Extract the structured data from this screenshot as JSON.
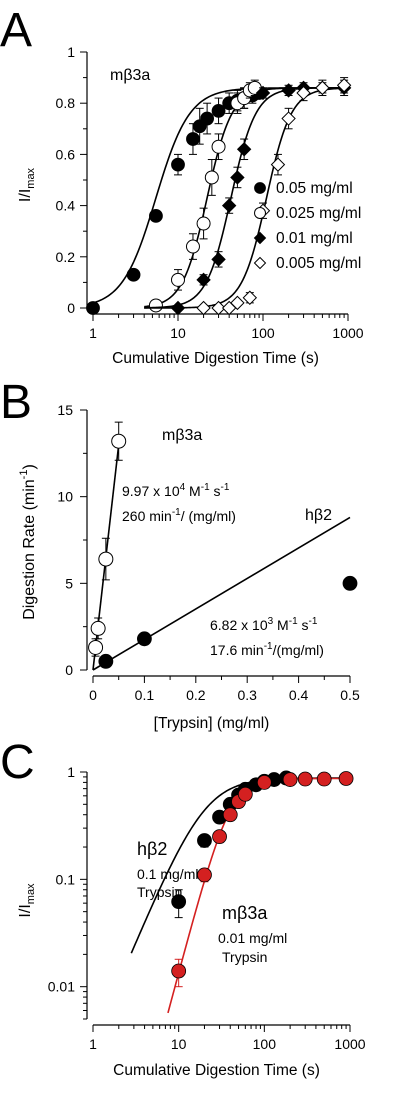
{
  "chart_data": [
    {
      "panel_label": "A",
      "type": "scatter",
      "annotation": "mβ3a",
      "xlabel": "Cumulative Digestion Time (s)",
      "ylabel": "I/I",
      "ylabel_sub": "max",
      "xscale": "log",
      "xlim": [
        1,
        1000
      ],
      "ylim": [
        0,
        1
      ],
      "xticks": [
        "1",
        "10",
        "100",
        "1000"
      ],
      "yticks": [
        "0",
        "0.2",
        "0.4",
        "0.6",
        "0.8",
        "1"
      ],
      "legend_position": "right",
      "series": [
        {
          "name": "0.05 mg/ml",
          "marker": "filled-circle",
          "x": [
            1,
            3,
            5.5,
            10,
            15,
            18,
            22,
            30,
            40,
            50,
            60,
            75,
            90
          ],
          "y": [
            0,
            0.13,
            0.36,
            0.56,
            0.66,
            0.71,
            0.74,
            0.77,
            0.8,
            0.81,
            0.82,
            0.83,
            0.84
          ],
          "err": [
            0,
            0,
            0,
            0.04,
            0.06,
            0.07,
            0.06,
            0.05,
            0.04,
            0.04,
            0.04,
            0.03,
            0.02
          ],
          "fit_midpoint": 5.5,
          "fit_hill": 2.2,
          "fit_max": 0.86
        },
        {
          "name": "0.025 mg/ml",
          "marker": "open-circle",
          "x": [
            5.5,
            10,
            15,
            20,
            25,
            30,
            50,
            60,
            70,
            80
          ],
          "y": [
            0.01,
            0.11,
            0.24,
            0.33,
            0.51,
            0.63,
            0.8,
            0.82,
            0.85,
            0.86
          ],
          "err": [
            0.02,
            0.04,
            0.05,
            0.06,
            0.07,
            0.05,
            0.04,
            0.04,
            0.03,
            0.03
          ],
          "fit_midpoint": 22,
          "fit_hill": 3,
          "fit_max": 0.86
        },
        {
          "name": "0.01 mg/ml",
          "marker": "filled-diamond",
          "x": [
            10,
            20,
            30,
            40,
            50,
            60,
            100,
            200,
            300,
            500,
            900
          ],
          "y": [
            0,
            0.11,
            0.19,
            0.4,
            0.51,
            0.62,
            0.84,
            0.85,
            0.86,
            0.86,
            0.86
          ],
          "err": [
            0,
            0.02,
            0.03,
            0.03,
            0.04,
            0.04,
            0.02,
            0.02,
            0.02,
            0.02,
            0.03
          ],
          "fit_midpoint": 42,
          "fit_hill": 3,
          "fit_max": 0.86
        },
        {
          "name": "0.005 mg/ml",
          "marker": "open-diamond",
          "x": [
            20,
            30,
            40,
            50,
            70,
            100,
            150,
            200,
            300,
            500,
            900
          ],
          "y": [
            0,
            0,
            0,
            0.02,
            0.04,
            0.38,
            0.56,
            0.74,
            0.84,
            0.86,
            0.87
          ],
          "err": [
            0,
            0,
            0,
            0.01,
            0.02,
            0.03,
            0.04,
            0.04,
            0.03,
            0.03,
            0.03
          ],
          "fit_midpoint": 110,
          "fit_hill": 3,
          "fit_max": 0.86
        }
      ]
    },
    {
      "panel_label": "B",
      "type": "scatter",
      "xlabel": "[Trypsin]   (mg/ml)",
      "ylabel": "Digestion Rate  (min",
      "ylabel_sup": "-1",
      "ylabel_end": ")",
      "xlim": [
        0,
        0.5
      ],
      "ylim": [
        0,
        15
      ],
      "xticks": [
        "0",
        "0.1",
        "0.2",
        "0.3",
        "0.4",
        "0.5"
      ],
      "yticks": [
        "0",
        "5",
        "10",
        "15"
      ],
      "series": [
        {
          "name": "mβ3a",
          "marker": "open-circle",
          "x": [
            0.005,
            0.01,
            0.025,
            0.05
          ],
          "y": [
            1.3,
            2.4,
            6.4,
            13.2
          ],
          "err": [
            0.5,
            0.6,
            1.2,
            1.1
          ],
          "fit_slope": 260,
          "fit_intercept": 0,
          "fit_xmax": 0.05
        },
        {
          "name": "hβ2",
          "marker": "filled-circle",
          "x": [
            0.025,
            0.1,
            0.5
          ],
          "y": [
            0.5,
            1.8,
            5.0
          ],
          "err": [
            0,
            0,
            0
          ],
          "fit_slope": 17.6,
          "fit_intercept": 0,
          "fit_xmax": 0.5
        }
      ],
      "annotations": [
        {
          "id": "mb3a_name",
          "text": "mβ3a"
        },
        {
          "id": "mb3a_rate1_pre",
          "text": "9.97 x 10"
        },
        {
          "id": "mb3a_rate1_exp",
          "text": "4"
        },
        {
          "id": "mb3a_rate1_mid",
          "text": " M"
        },
        {
          "id": "mb3a_rate1_m1",
          "text": "-1"
        },
        {
          "id": "mb3a_rate1_s",
          "text": " s"
        },
        {
          "id": "mb3a_rate1_s1",
          "text": "-1"
        },
        {
          "id": "mb3a_rate2_pre",
          "text": "260 min"
        },
        {
          "id": "mb3a_rate2_sup",
          "text": "-1"
        },
        {
          "id": "mb3a_rate2_post",
          "text": "/ (mg/ml)"
        },
        {
          "id": "hb2_name",
          "text": "hβ2"
        },
        {
          "id": "hb2_rate1_pre",
          "text": "6.82 x 10"
        },
        {
          "id": "hb2_rate1_exp",
          "text": "3"
        },
        {
          "id": "hb2_rate1_mid",
          "text": " M"
        },
        {
          "id": "hb2_rate1_m1",
          "text": "-1"
        },
        {
          "id": "hb2_rate1_s",
          "text": " s"
        },
        {
          "id": "hb2_rate1_s1",
          "text": "-1"
        },
        {
          "id": "hb2_rate2_pre",
          "text": "17.6 min"
        },
        {
          "id": "hb2_rate2_sup",
          "text": "-1"
        },
        {
          "id": "hb2_rate2_post",
          "text": "/(mg/ml)"
        }
      ]
    },
    {
      "panel_label": "C",
      "type": "scatter",
      "xlabel": "Cumulative Digestion Time (s)",
      "ylabel": "I/I",
      "ylabel_sub": "max",
      "xscale": "log",
      "yscale": "log",
      "xlim": [
        1,
        1000
      ],
      "ylim": [
        0.005,
        1
      ],
      "xticks": [
        "1",
        "10",
        "100",
        "1000"
      ],
      "yticks": [
        "0.01",
        "0.1",
        "1"
      ],
      "series": [
        {
          "name": "hβ2",
          "color": "#000000",
          "marker": "filled-circle",
          "x": [
            10,
            20,
            30,
            40,
            50,
            60,
            80,
            100,
            130,
            180
          ],
          "y": [
            0.062,
            0.23,
            0.38,
            0.5,
            0.61,
            0.69,
            0.76,
            0.82,
            0.85,
            0.88
          ],
          "err": [
            0.018,
            0.03,
            0.04,
            0.04,
            0.04,
            0.04,
            0.03,
            0.03,
            0.03,
            0.03
          ],
          "fit_midpoint": 20,
          "fit_hill": 1.9,
          "fit_max": 0.88,
          "fit_xmin": 2.8
        },
        {
          "name": "mβ3a",
          "color": "#d42020",
          "marker": "filled-circle",
          "x": [
            10,
            20,
            30,
            40,
            50,
            60,
            100,
            200,
            300,
            500,
            900
          ],
          "y": [
            0.014,
            0.11,
            0.25,
            0.4,
            0.53,
            0.62,
            0.8,
            0.85,
            0.86,
            0.86,
            0.87
          ],
          "err": [
            0.004,
            0.015,
            0.03,
            0.04,
            0.05,
            0.05,
            0.04,
            0.03,
            0.03,
            0.03,
            0.03
          ],
          "fit_midpoint": 40,
          "fit_hill": 3,
          "fit_max": 0.87,
          "fit_xmin": 7.5
        }
      ],
      "annotations": [
        {
          "id": "hb2_name",
          "text": "hβ2"
        },
        {
          "id": "hb2_conc",
          "text": "0.1 mg/ml"
        },
        {
          "id": "hb2_tryp",
          "text": "Trypsin"
        },
        {
          "id": "mb3a_name",
          "text": "mβ3a"
        },
        {
          "id": "mb3a_conc",
          "text": "0.01 mg/ml"
        },
        {
          "id": "mb3a_tryp",
          "text": "Trypsin"
        }
      ]
    }
  ]
}
